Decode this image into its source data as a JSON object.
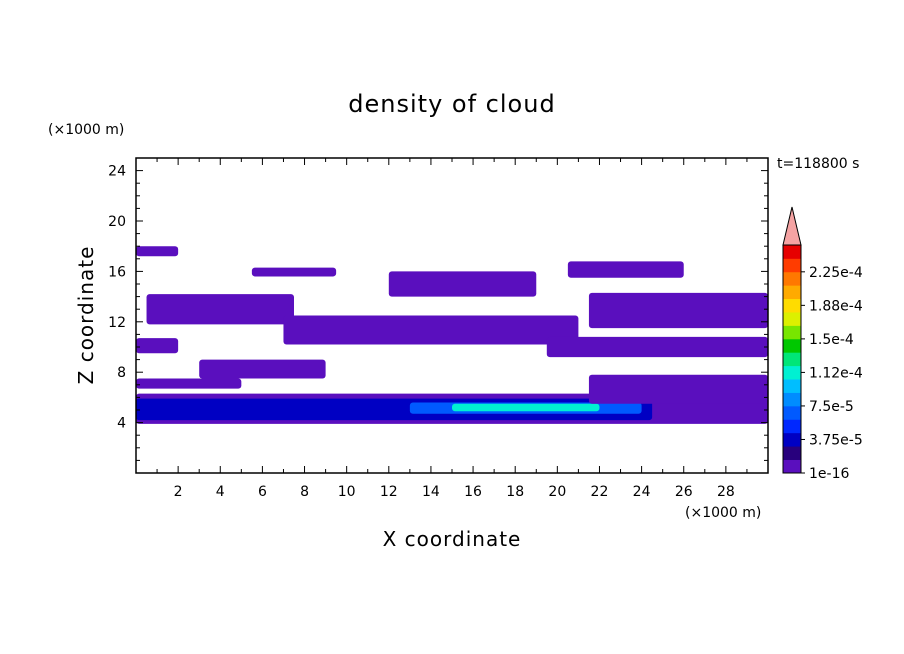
{
  "chart_data": {
    "type": "heatmap",
    "title": "density of cloud",
    "xlabel": "X coordinate",
    "ylabel": "Z coordinate",
    "x_unit": "(×1000 m)",
    "y_unit": "(×1000 m)",
    "time_label": "t=118800 s",
    "xlim": [
      0,
      30
    ],
    "ylim": [
      0,
      25
    ],
    "x_ticks": [
      2,
      4,
      6,
      8,
      10,
      12,
      14,
      16,
      18,
      20,
      22,
      24,
      26,
      28
    ],
    "y_ticks": [
      4,
      8,
      12,
      16,
      20,
      24
    ],
    "colorbar_labels": [
      "1e-16",
      "3.75e-5",
      "7.5e-5",
      "1.12e-4",
      "1.5e-4",
      "1.88e-4",
      "2.25e-4"
    ],
    "colorbar_colors": [
      "#5a0fbe",
      "#28007d",
      "#0000c3",
      "#0028ff",
      "#005aff",
      "#008cff",
      "#00beff",
      "#00f0d2",
      "#00e678",
      "#00c800",
      "#78e600",
      "#dcf000",
      "#ffdc00",
      "#ffaa00",
      "#ff7800",
      "#ff3c00",
      "#e60000"
    ],
    "colorbar_over_color": "#f5a3a3",
    "cloud_layers": [
      {
        "level": "1e-16",
        "x": [
          0,
          30
        ],
        "z": [
          3.9,
          6.3
        ]
      },
      {
        "level": "3.75e-5",
        "x": [
          0,
          24.5
        ],
        "z": [
          4.2,
          5.9
        ]
      },
      {
        "level": "7.5e-5",
        "x": [
          13,
          24
        ],
        "z": [
          4.7,
          5.6
        ]
      },
      {
        "level": "1.12e-4",
        "x": [
          15,
          22
        ],
        "z": [
          4.9,
          5.5
        ]
      },
      {
        "level": "1e-16",
        "x": [
          0,
          2
        ],
        "z": [
          17.2,
          18
        ]
      },
      {
        "level": "1e-16",
        "x": [
          5.5,
          9.5
        ],
        "z": [
          15.6,
          16.3
        ]
      },
      {
        "level": "1e-16",
        "x": [
          12,
          19
        ],
        "z": [
          14,
          16
        ]
      },
      {
        "level": "1e-16",
        "x": [
          20.5,
          26
        ],
        "z": [
          15.5,
          16.8
        ]
      },
      {
        "level": "1e-16",
        "x": [
          0.5,
          7.5
        ],
        "z": [
          11.8,
          14.2
        ]
      },
      {
        "level": "1e-16",
        "x": [
          21.5,
          30
        ],
        "z": [
          11.5,
          14.3
        ]
      },
      {
        "level": "1e-16",
        "x": [
          7,
          21
        ],
        "z": [
          10.2,
          12.5
        ]
      },
      {
        "level": "1e-16",
        "x": [
          0,
          2
        ],
        "z": [
          9.5,
          10.7
        ]
      },
      {
        "level": "1e-16",
        "x": [
          19.5,
          30
        ],
        "z": [
          9.2,
          10.8
        ]
      },
      {
        "level": "1e-16",
        "x": [
          3,
          9
        ],
        "z": [
          7.5,
          9
        ]
      },
      {
        "level": "1e-16",
        "x": [
          0,
          5
        ],
        "z": [
          6.7,
          7.5
        ]
      },
      {
        "level": "1e-16",
        "x": [
          21.5,
          30
        ],
        "z": [
          5.5,
          7.8
        ]
      }
    ]
  }
}
